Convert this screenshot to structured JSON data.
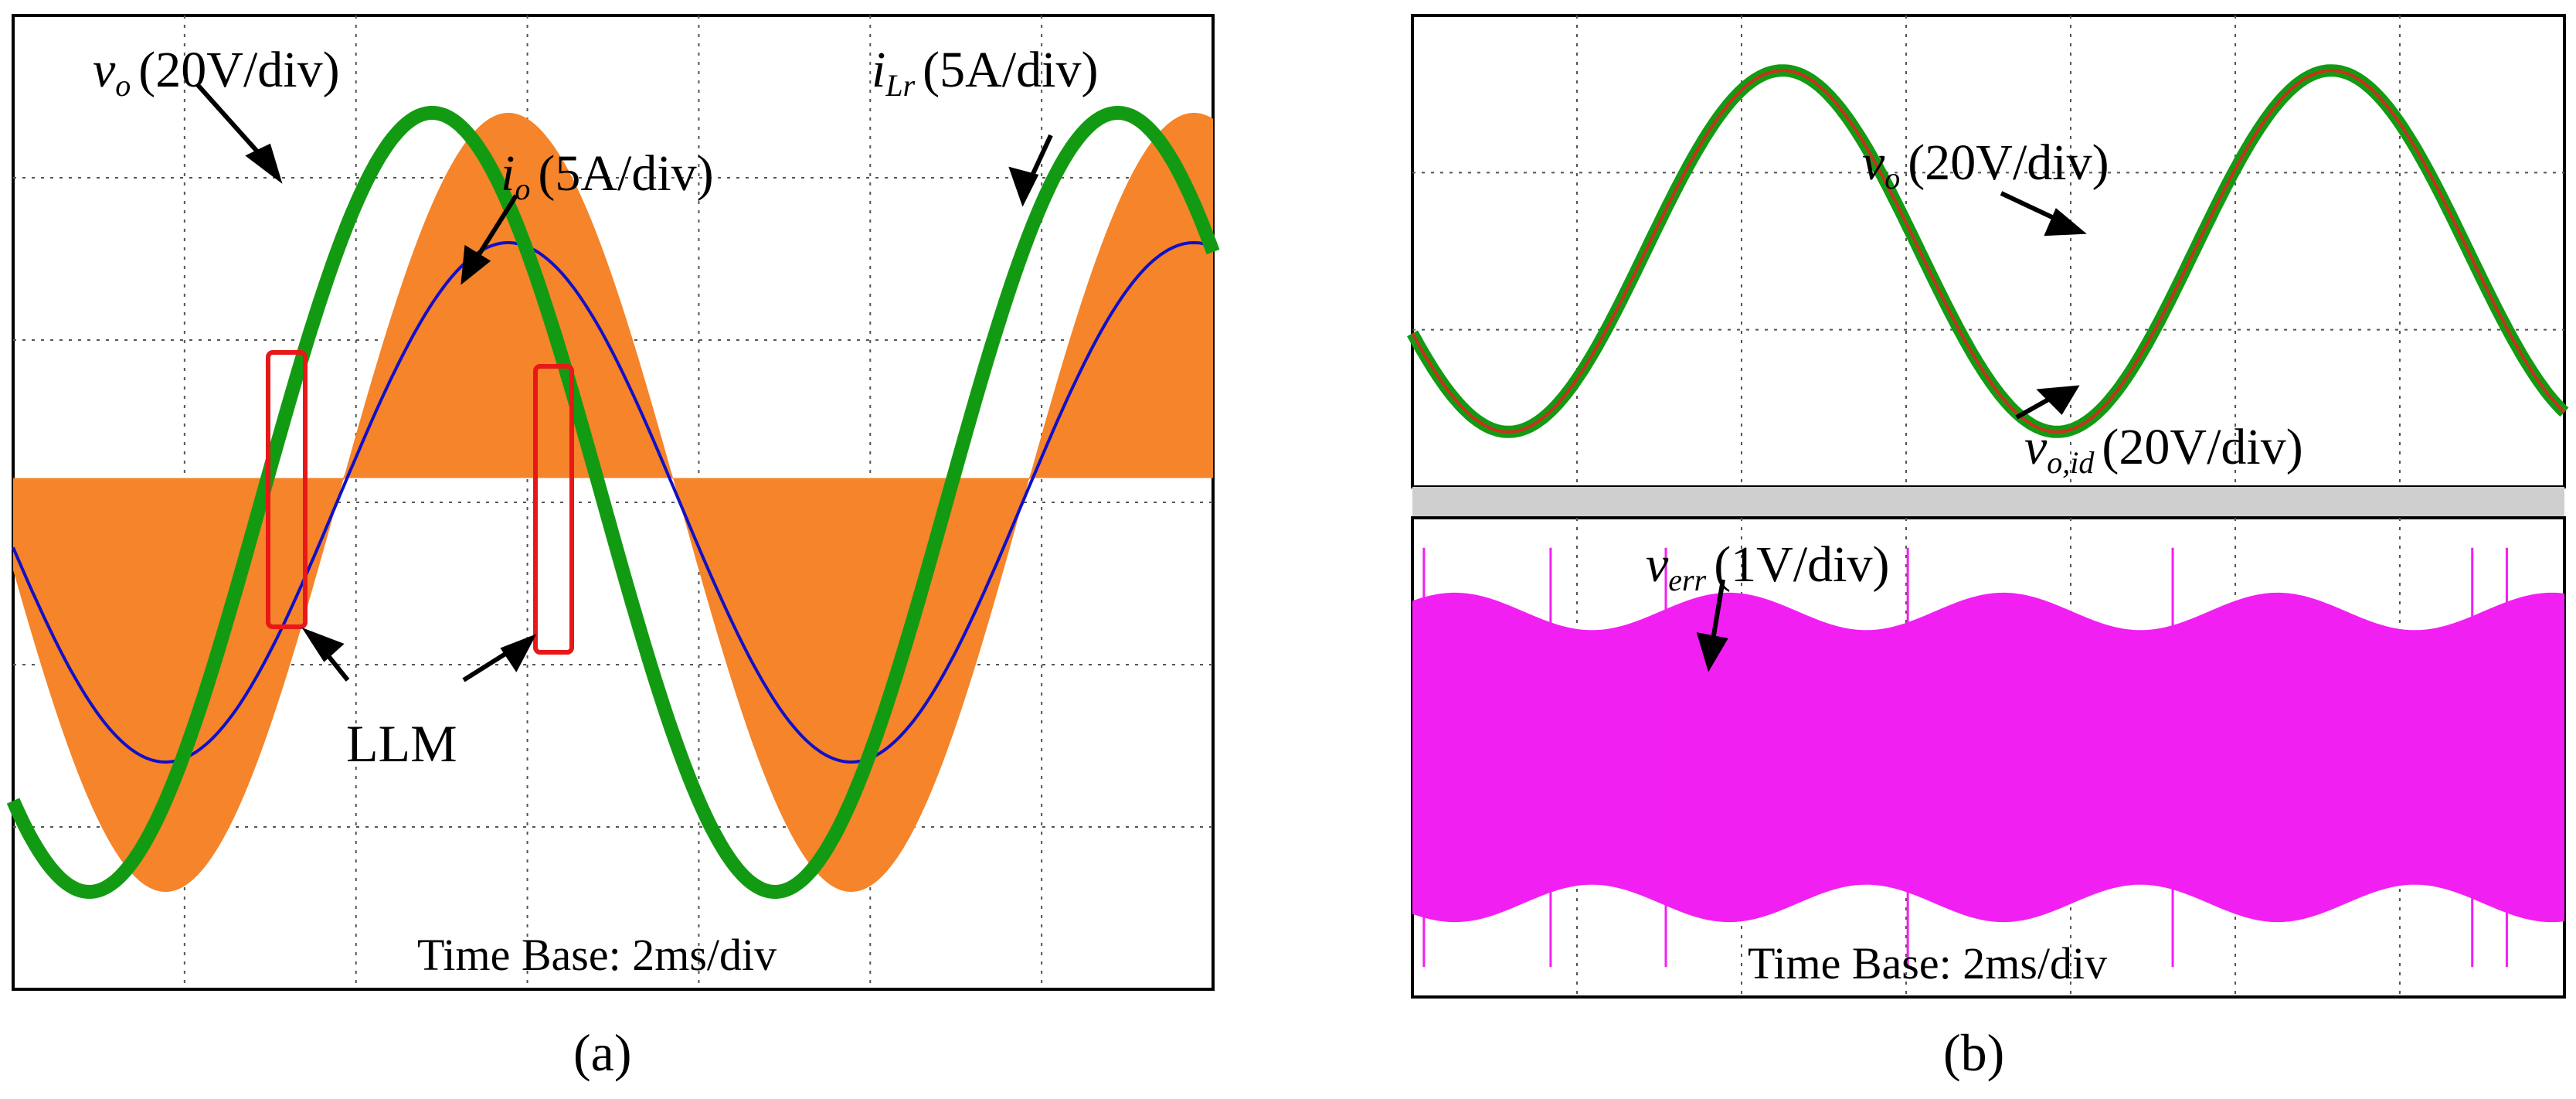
{
  "chart_data": [
    {
      "panel": "a",
      "type": "line",
      "time_base": "Time Base: 2ms/div",
      "x_divisions": 7,
      "y_divisions": 6,
      "grid": true,
      "series": [
        {
          "name": "v_o",
          "label_main": "v",
          "label_sub": "o",
          "scale": "(20V/div)",
          "color": "#129b12",
          "amplitude_div": 2.4,
          "offset_div": 0.0,
          "cycles": 1.75,
          "phase_deg": 230
        },
        {
          "name": "i_o",
          "label_main": "i",
          "label_sub": "o",
          "scale": "(5A/div)",
          "color": "#1010c8",
          "amplitude_div": 1.6,
          "offset_div": 0.0,
          "cycles": 1.75,
          "phase_deg": 190
        },
        {
          "name": "i_Lr",
          "label_main": "i",
          "label_sub": "Lr",
          "scale": "(5A/div)",
          "color": "#f5842a",
          "peak_div": 2.4,
          "flat_div": 0.0,
          "cycles": 1.75,
          "ripple": "high-frequency envelope between flat level and sine"
        }
      ],
      "annotation": {
        "text": "LLM",
        "color": "#e81818",
        "boxes": 2
      }
    },
    {
      "panel": "b",
      "subplots": [
        {
          "type": "line",
          "x_divisions": 7,
          "y_divisions": 3,
          "grid": true,
          "series": [
            {
              "name": "v_o",
              "label_main": "v",
              "label_sub": "o",
              "scale": "(20V/div)",
              "color": "#129b12",
              "amplitude_div": 1.15,
              "cycles": 2.1
            },
            {
              "name": "v_o,id",
              "label_main": "v",
              "label_sub": "o,id",
              "scale": "(20V/div)",
              "color": "#c8321e",
              "amplitude_div": 1.15,
              "cycles": 2.1
            }
          ]
        },
        {
          "type": "area",
          "x_divisions": 7,
          "y_divisions": 3,
          "grid": true,
          "time_base": "Time Base: 2ms/div",
          "series": [
            {
              "name": "v_err",
              "label_main": "v",
              "label_sub": "err",
              "scale": "(1V/div)",
              "color": "#f21ff2",
              "envelope_div": [
                0.85,
                1.1
              ],
              "cycles": 4.2
            }
          ]
        }
      ]
    }
  ],
  "captions": {
    "a": "(a)",
    "b": "(b)"
  }
}
